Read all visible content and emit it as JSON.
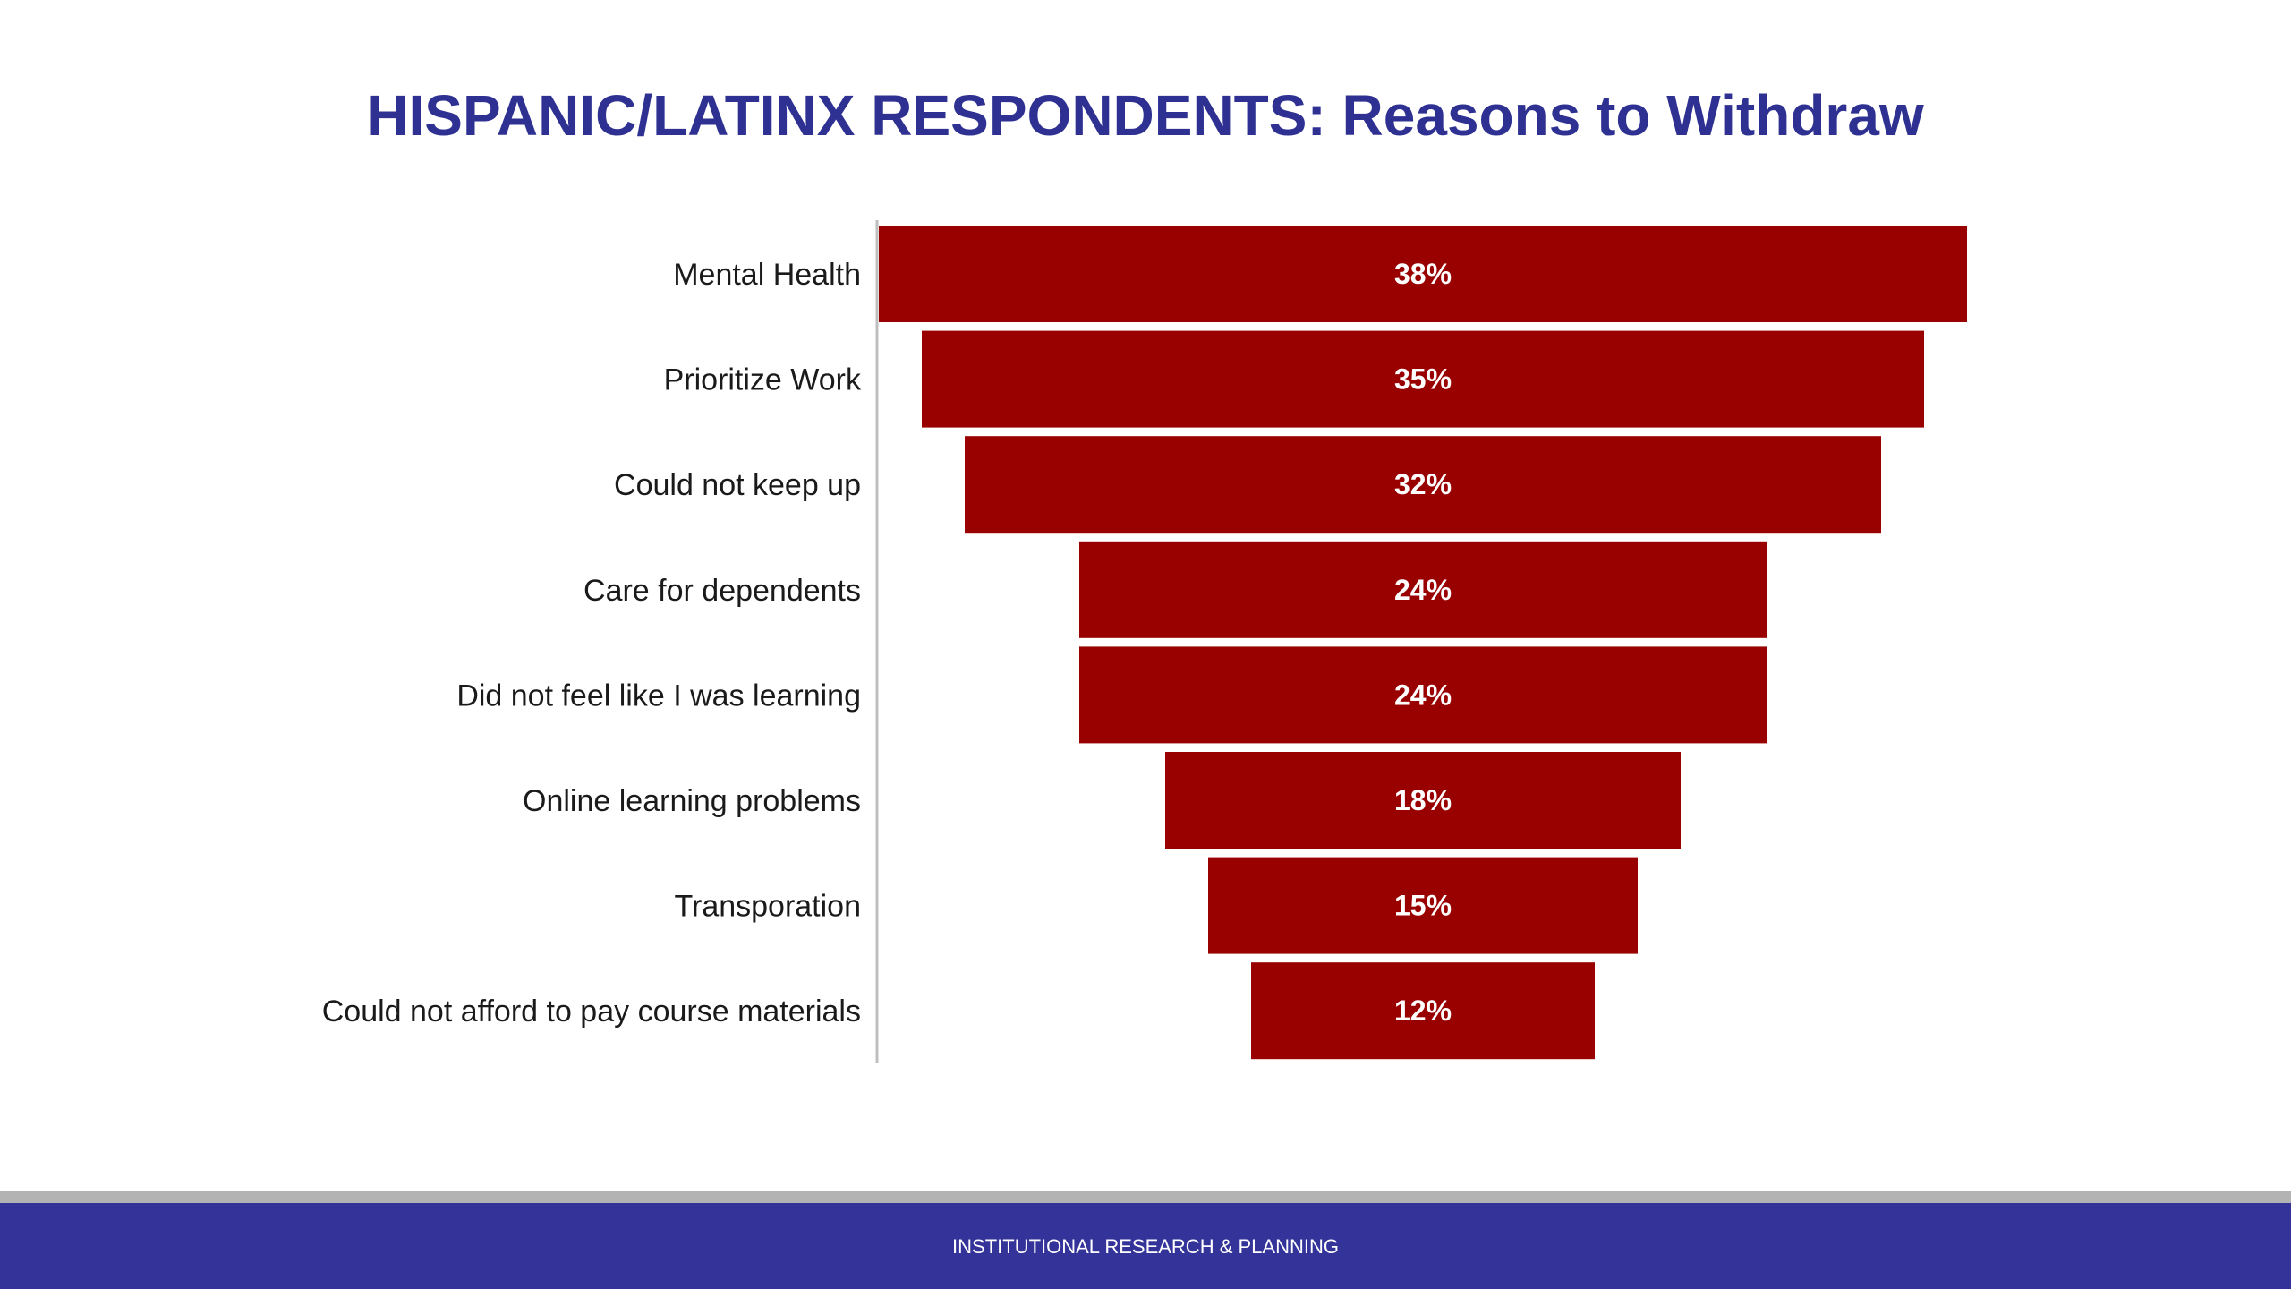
{
  "slide": {
    "title": "HISPANIC/LATINX RESPONDENTS: Reasons to Withdraw",
    "footer": "INSTITUTIONAL RESEARCH & PLANNING"
  },
  "colors": {
    "title": "#2e3192",
    "bar": "#990000",
    "footer_band": "#333399",
    "footer_stripe": "#b3b3b3"
  },
  "chart_data": {
    "type": "bar",
    "orientation": "horizontal-centered-funnel",
    "title": "HISPANIC/LATINX RESPONDENTS: Reasons to Withdraw",
    "categories": [
      "Mental Health",
      "Prioritize Work",
      "Could not keep up",
      "Care for dependents",
      "Did not feel like I was learning",
      "Online learning problems",
      "Transporation",
      "Could not afford to pay course materials"
    ],
    "values": [
      38,
      35,
      32,
      24,
      24,
      18,
      15,
      12
    ],
    "value_labels": [
      "38%",
      "35%",
      "32%",
      "24%",
      "24%",
      "18%",
      "15%",
      "12%"
    ],
    "unit": "%",
    "legend": "none",
    "grid": false
  }
}
